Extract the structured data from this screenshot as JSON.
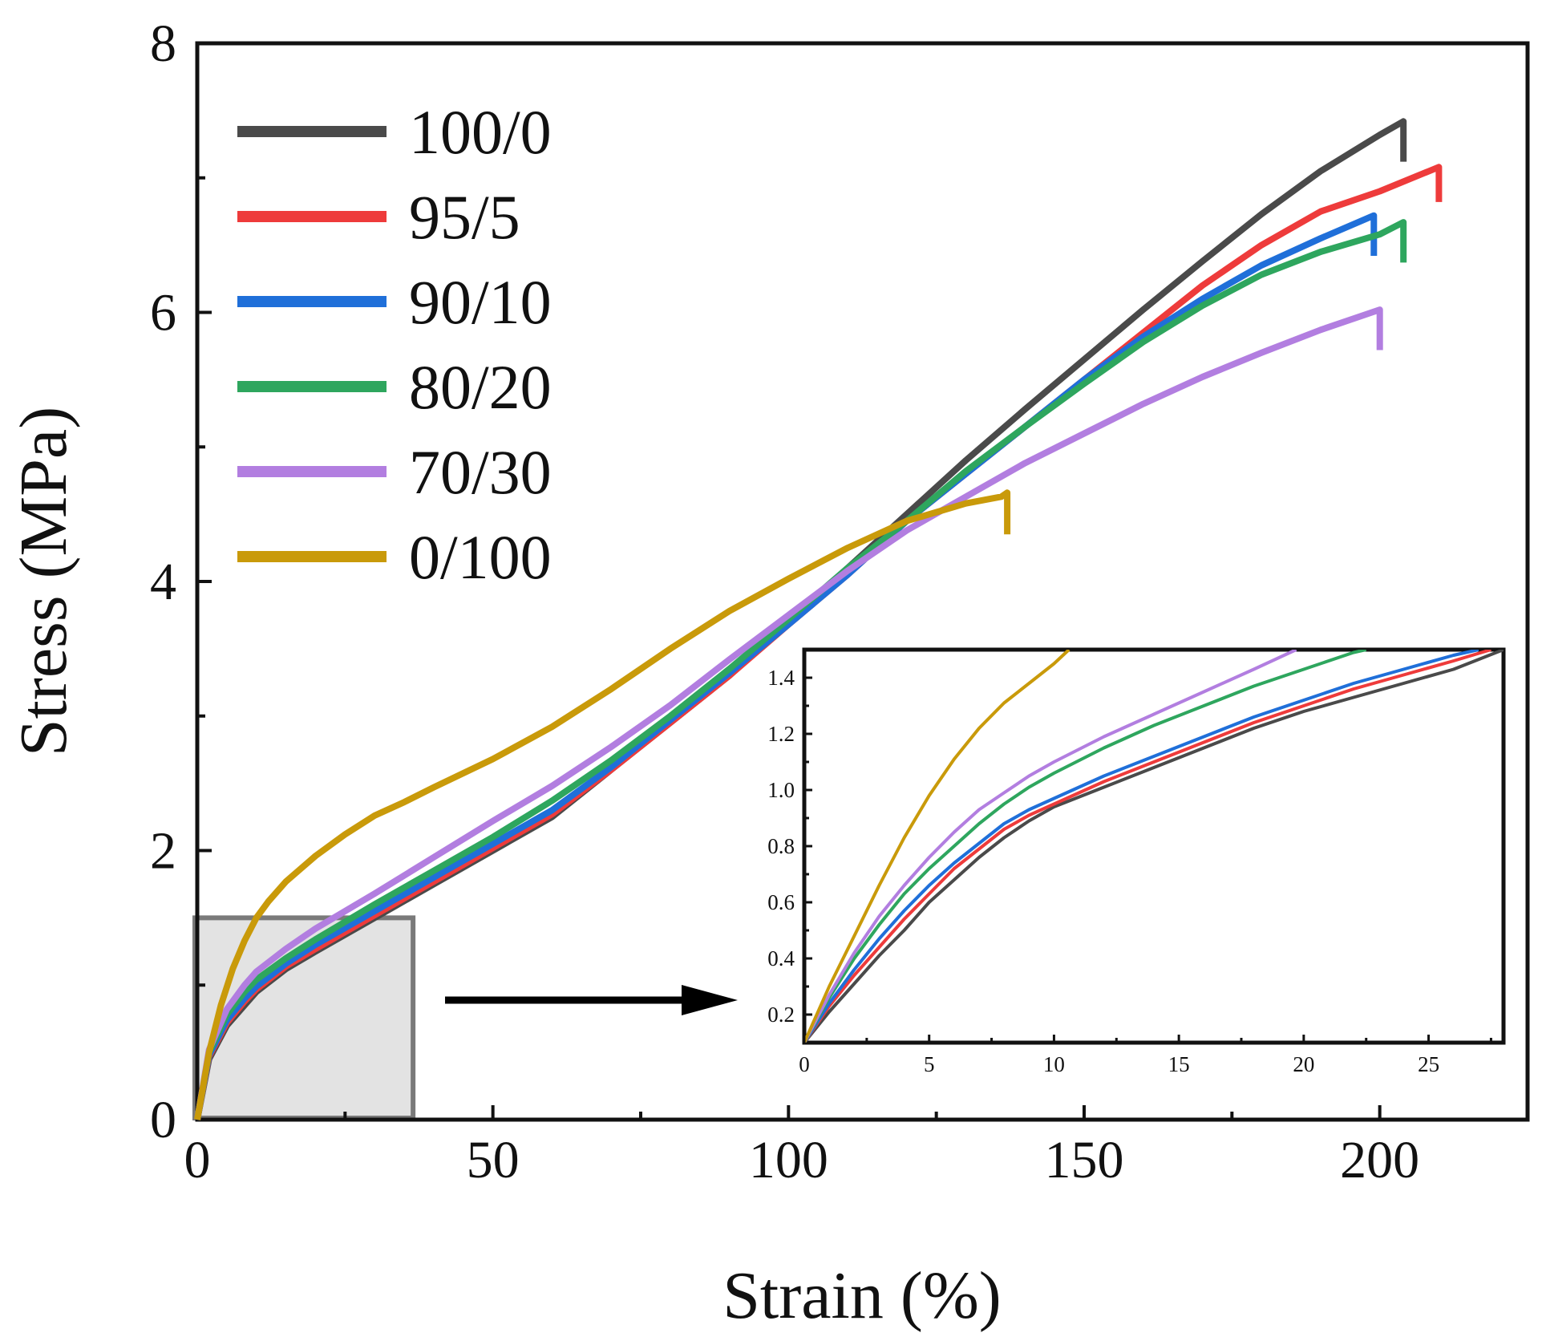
{
  "chart_data": {
    "type": "line",
    "xlabel": "Strain (%)",
    "ylabel": "Stress (MPa)",
    "xlim": [
      0,
      225
    ],
    "ylim": [
      0,
      8
    ],
    "xticks": [
      0,
      50,
      100,
      150,
      200
    ],
    "yticks": [
      0,
      2,
      4,
      6,
      8
    ],
    "legend_position": "top-left",
    "colors": {
      "100/0": "#4a4a4a",
      "95/5": "#ee3b3b",
      "90/10": "#1f6fd9",
      "80/20": "#2ea65e",
      "70/30": "#b27ee0",
      "0/100": "#c99a0a"
    },
    "series": [
      {
        "name": "100/0",
        "x": [
          0,
          2,
          5,
          8,
          10,
          15,
          20,
          30,
          40,
          50,
          60,
          70,
          80,
          90,
          100,
          110,
          120,
          130,
          140,
          150,
          160,
          170,
          180,
          190,
          200,
          204,
          204
        ],
        "y": [
          0,
          0.45,
          0.7,
          0.85,
          0.95,
          1.12,
          1.25,
          1.5,
          1.75,
          2.0,
          2.25,
          2.6,
          2.95,
          3.3,
          3.7,
          4.1,
          4.5,
          4.9,
          5.28,
          5.65,
          6.02,
          6.38,
          6.73,
          7.05,
          7.32,
          7.42,
          7.12
        ]
      },
      {
        "name": "95/5",
        "x": [
          0,
          2,
          5,
          8,
          10,
          15,
          20,
          30,
          40,
          50,
          60,
          70,
          80,
          90,
          100,
          110,
          120,
          130,
          140,
          150,
          160,
          170,
          180,
          190,
          200,
          210,
          210
        ],
        "y": [
          0,
          0.47,
          0.72,
          0.88,
          0.97,
          1.14,
          1.27,
          1.52,
          1.77,
          2.02,
          2.27,
          2.6,
          2.95,
          3.3,
          3.68,
          4.05,
          4.45,
          4.8,
          5.15,
          5.5,
          5.85,
          6.2,
          6.5,
          6.75,
          6.9,
          7.08,
          6.82
        ]
      },
      {
        "name": "90/10",
        "x": [
          0,
          2,
          5,
          8,
          10,
          15,
          20,
          30,
          40,
          50,
          60,
          70,
          80,
          90,
          100,
          110,
          120,
          130,
          140,
          150,
          160,
          170,
          180,
          190,
          199,
          199
        ],
        "y": [
          0,
          0.48,
          0.74,
          0.9,
          0.99,
          1.16,
          1.3,
          1.55,
          1.8,
          2.05,
          2.3,
          2.62,
          2.97,
          3.32,
          3.68,
          4.05,
          4.45,
          4.8,
          5.15,
          5.5,
          5.82,
          6.1,
          6.35,
          6.55,
          6.72,
          6.42
        ]
      },
      {
        "name": "80/20",
        "x": [
          0,
          2,
          5,
          8,
          10,
          15,
          20,
          30,
          40,
          50,
          60,
          70,
          80,
          90,
          100,
          110,
          120,
          130,
          140,
          150,
          160,
          170,
          180,
          190,
          200,
          204,
          204
        ],
        "y": [
          0,
          0.5,
          0.78,
          0.95,
          1.04,
          1.2,
          1.34,
          1.6,
          1.85,
          2.1,
          2.37,
          2.67,
          3.0,
          3.35,
          3.72,
          4.1,
          4.45,
          4.82,
          5.15,
          5.47,
          5.78,
          6.05,
          6.28,
          6.45,
          6.58,
          6.67,
          6.37
        ]
      },
      {
        "name": "70/30",
        "x": [
          0,
          2,
          5,
          8,
          10,
          15,
          20,
          30,
          40,
          50,
          60,
          70,
          80,
          90,
          100,
          110,
          120,
          130,
          140,
          150,
          160,
          170,
          180,
          190,
          200,
          200
        ],
        "y": [
          0,
          0.52,
          0.82,
          1.0,
          1.1,
          1.27,
          1.42,
          1.68,
          1.95,
          2.22,
          2.48,
          2.77,
          3.08,
          3.42,
          3.75,
          4.08,
          4.38,
          4.63,
          4.88,
          5.1,
          5.32,
          5.52,
          5.7,
          5.87,
          6.02,
          5.72
        ]
      },
      {
        "name": "0/100",
        "x": [
          0,
          2,
          4,
          6,
          8,
          10,
          12,
          15,
          20,
          25,
          30,
          35,
          40,
          50,
          60,
          70,
          80,
          90,
          100,
          110,
          120,
          130,
          136,
          137,
          137
        ],
        "y": [
          0,
          0.5,
          0.85,
          1.12,
          1.33,
          1.5,
          1.62,
          1.77,
          1.96,
          2.12,
          2.26,
          2.36,
          2.47,
          2.68,
          2.92,
          3.2,
          3.5,
          3.78,
          4.02,
          4.25,
          4.45,
          4.58,
          4.63,
          4.66,
          4.35
        ]
      }
    ],
    "highlight_region": {
      "x": [
        0,
        36.5
      ],
      "y": [
        0,
        1.5
      ]
    },
    "inset": {
      "xlim": [
        0,
        28
      ],
      "ylim": [
        0.1,
        1.5
      ],
      "xticks": [
        0,
        5,
        10,
        15,
        20,
        25
      ],
      "yticks": [
        0.2,
        0.4,
        0.6,
        0.8,
        1.0,
        1.2,
        1.4
      ],
      "xtick_labels": [
        "0",
        "5",
        "10",
        "15",
        "20",
        "25"
      ],
      "ytick_labels": [
        "0.2",
        "0.4",
        "0.6",
        "0.8",
        "1.0",
        "1.2",
        "1.4"
      ],
      "series": [
        {
          "name": "100/0",
          "x": [
            0,
            1,
            2,
            3,
            4,
            5,
            6,
            7,
            8,
            9,
            10,
            12,
            14,
            16,
            18,
            20,
            22,
            24,
            26,
            28
          ],
          "y": [
            0.1,
            0.21,
            0.31,
            0.41,
            0.5,
            0.6,
            0.68,
            0.76,
            0.83,
            0.89,
            0.94,
            1.01,
            1.08,
            1.15,
            1.22,
            1.28,
            1.33,
            1.38,
            1.43,
            1.5
          ]
        },
        {
          "name": "95/5",
          "x": [
            0,
            1,
            2,
            3,
            4,
            5,
            6,
            7,
            8,
            9,
            10,
            12,
            14,
            16,
            18,
            20,
            22,
            24,
            26,
            27.5
          ],
          "y": [
            0.1,
            0.23,
            0.34,
            0.44,
            0.54,
            0.63,
            0.72,
            0.79,
            0.86,
            0.91,
            0.95,
            1.03,
            1.1,
            1.17,
            1.24,
            1.3,
            1.36,
            1.41,
            1.46,
            1.5
          ]
        },
        {
          "name": "90/10",
          "x": [
            0,
            1,
            2,
            3,
            4,
            5,
            6,
            7,
            8,
            9,
            10,
            12,
            14,
            16,
            18,
            20,
            22,
            24,
            26,
            27
          ],
          "y": [
            0.1,
            0.24,
            0.36,
            0.47,
            0.57,
            0.66,
            0.74,
            0.81,
            0.88,
            0.93,
            0.97,
            1.05,
            1.12,
            1.19,
            1.26,
            1.32,
            1.38,
            1.43,
            1.48,
            1.5
          ]
        },
        {
          "name": "80/20",
          "x": [
            0,
            1,
            2,
            3,
            4,
            5,
            6,
            7,
            8,
            9,
            10,
            12,
            14,
            16,
            18,
            20,
            22,
            22.5
          ],
          "y": [
            0.1,
            0.26,
            0.4,
            0.52,
            0.63,
            0.72,
            0.8,
            0.88,
            0.95,
            1.01,
            1.06,
            1.15,
            1.23,
            1.3,
            1.37,
            1.43,
            1.49,
            1.5
          ]
        },
        {
          "name": "70/30",
          "x": [
            0,
            1,
            2,
            3,
            4,
            5,
            6,
            7,
            8,
            9,
            10,
            12,
            14,
            16,
            18,
            19.7
          ],
          "y": [
            0.1,
            0.27,
            0.42,
            0.55,
            0.66,
            0.76,
            0.85,
            0.93,
            0.99,
            1.05,
            1.1,
            1.19,
            1.27,
            1.35,
            1.43,
            1.5
          ]
        },
        {
          "name": "0/100",
          "x": [
            0,
            1,
            2,
            3,
            4,
            5,
            6,
            7,
            8,
            9,
            10,
            10.6
          ],
          "y": [
            0.1,
            0.3,
            0.48,
            0.66,
            0.83,
            0.98,
            1.11,
            1.22,
            1.31,
            1.38,
            1.45,
            1.5
          ]
        }
      ]
    }
  }
}
